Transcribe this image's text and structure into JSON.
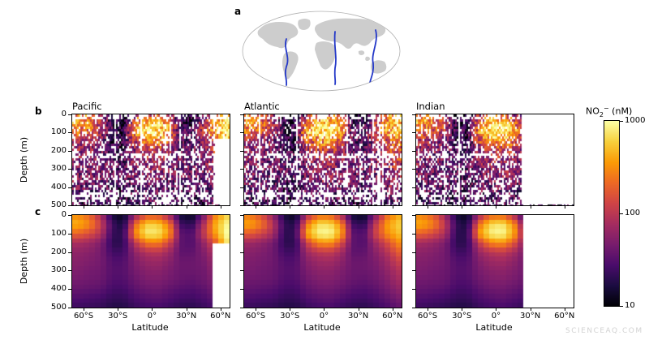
{
  "panels": {
    "a": "a",
    "b": "b",
    "c": "c"
  },
  "watermark": "SCIENCEAQ.COM",
  "map": {
    "transects": [
      "Pacific",
      "Atlantic",
      "Indian"
    ],
    "line_color": "#2438c8",
    "land_color": "#cdcdcd",
    "outline_color": "#b0b0b0"
  },
  "chart_data": {
    "type": "heatmap",
    "description": "Nitrite concentration sections (depth vs latitude) along Pacific, Atlantic and Indian ocean transects; row b scattered observations, row c gridded field; log color scale",
    "x": {
      "label": "Latitude",
      "tick_values": [
        -60,
        -30,
        0,
        30,
        60
      ],
      "tick_labels": [
        "60°S",
        "30°S",
        "0°",
        "30°N",
        "60°N"
      ],
      "range": [
        -70,
        68
      ]
    },
    "y": {
      "label": "Depth (m)",
      "tick_values": [
        0,
        100,
        200,
        300,
        400,
        500
      ],
      "range": [
        0,
        500
      ]
    },
    "colorbar": {
      "label": "NO2- (nM)",
      "formula_main": "NO",
      "formula_sub": "2",
      "formula_sup": "−",
      "unit": " (nM)",
      "scale": "log",
      "ticks": [
        10,
        100,
        1000
      ],
      "colormap": "inferno",
      "colormap_stops": [
        "#000004",
        "#1b0c41",
        "#4a0c6b",
        "#781c6d",
        "#a52c60",
        "#cf4446",
        "#ed6925",
        "#fb9b06",
        "#f7d03c",
        "#fcffa4"
      ]
    },
    "lat_bins": [
      -65,
      -55,
      -45,
      -35,
      -25,
      -15,
      -5,
      5,
      15,
      25,
      35,
      45,
      55,
      65
    ],
    "depth_bins": [
      0,
      50,
      100,
      150,
      200,
      250,
      300,
      350,
      400,
      450,
      500
    ],
    "sections": [
      {
        "name": "Pacific",
        "values_nM": [
          [
            300,
            200,
            80,
            15,
            12,
            60,
            150,
            150,
            70,
            15,
            12,
            40,
            250,
            600
          ],
          [
            450,
            300,
            120,
            25,
            15,
            200,
            600,
            600,
            250,
            25,
            20,
            80,
            400,
            900
          ],
          [
            200,
            150,
            90,
            22,
            20,
            300,
            800,
            800,
            350,
            35,
            30,
            100,
            350,
            1000
          ],
          [
            80,
            70,
            50,
            20,
            20,
            100,
            250,
            280,
            130,
            35,
            30,
            60,
            150,
            700
          ],
          [
            60,
            55,
            45,
            25,
            25,
            60,
            90,
            100,
            70,
            35,
            35,
            50,
            90,
            300
          ],
          [
            55,
            50,
            45,
            30,
            30,
            50,
            65,
            70,
            55,
            40,
            40,
            45,
            70,
            150
          ],
          [
            50,
            45,
            42,
            32,
            32,
            45,
            55,
            58,
            48,
            40,
            40,
            42,
            60,
            100
          ],
          [
            45,
            42,
            40,
            30,
            30,
            40,
            48,
            50,
            44,
            38,
            36,
            40,
            52,
            80
          ],
          [
            38,
            36,
            34,
            26,
            26,
            34,
            40,
            42,
            36,
            32,
            30,
            34,
            44,
            60
          ],
          [
            30,
            28,
            26,
            22,
            22,
            28,
            32,
            34,
            30,
            26,
            25,
            28,
            35,
            45
          ],
          [
            24,
            23,
            22,
            18,
            18,
            23,
            26,
            27,
            24,
            21,
            20,
            23,
            28,
            35
          ]
        ],
        "nodata": [
          {
            "lat0": 55,
            "lat1": 70,
            "depth0": 140,
            "depth1": 500
          }
        ]
      },
      {
        "name": "Atlantic",
        "values_nM": [
          [
            250,
            150,
            60,
            15,
            12,
            80,
            200,
            200,
            80,
            15,
            12,
            50,
            200,
            400
          ],
          [
            400,
            250,
            100,
            22,
            18,
            250,
            700,
            700,
            300,
            25,
            20,
            100,
            350,
            600
          ],
          [
            180,
            130,
            80,
            20,
            22,
            400,
            900,
            1000,
            400,
            35,
            30,
            120,
            300,
            500
          ],
          [
            70,
            60,
            45,
            20,
            20,
            120,
            300,
            350,
            150,
            35,
            30,
            70,
            140,
            300
          ],
          [
            55,
            50,
            42,
            25,
            25,
            70,
            100,
            110,
            75,
            35,
            35,
            55,
            90,
            180
          ],
          [
            50,
            46,
            42,
            30,
            30,
            55,
            70,
            75,
            58,
            40,
            40,
            48,
            70,
            120
          ],
          [
            46,
            43,
            40,
            32,
            32,
            48,
            58,
            60,
            50,
            40,
            40,
            44,
            60,
            90
          ],
          [
            42,
            40,
            38,
            30,
            30,
            42,
            50,
            52,
            45,
            38,
            36,
            40,
            52,
            75
          ],
          [
            36,
            34,
            32,
            26,
            26,
            35,
            42,
            43,
            38,
            32,
            30,
            34,
            44,
            60
          ],
          [
            29,
            27,
            26,
            22,
            22,
            29,
            33,
            35,
            30,
            26,
            25,
            28,
            35,
            46
          ],
          [
            23,
            22,
            21,
            18,
            18,
            23,
            26,
            28,
            24,
            21,
            20,
            23,
            28,
            36
          ]
        ],
        "nodata": []
      },
      {
        "name": "Indian",
        "values_nM": [
          [
            280,
            180,
            70,
            15,
            12,
            70,
            180,
            200,
            90,
            20,
            15,
            15,
            15,
            15
          ],
          [
            420,
            280,
            110,
            22,
            16,
            220,
            650,
            800,
            350,
            40,
            20,
            20,
            20,
            20
          ],
          [
            190,
            140,
            85,
            20,
            20,
            350,
            850,
            1000,
            450,
            60,
            25,
            25,
            25,
            25
          ],
          [
            75,
            65,
            48,
            20,
            20,
            110,
            280,
            350,
            180,
            50,
            30,
            30,
            30,
            30
          ],
          [
            58,
            52,
            44,
            25,
            25,
            65,
            95,
            110,
            80,
            45,
            35,
            35,
            35,
            35
          ],
          [
            52,
            48,
            43,
            30,
            30,
            52,
            68,
            75,
            60,
            42,
            40,
            40,
            40,
            40
          ],
          [
            48,
            44,
            41,
            32,
            32,
            46,
            56,
            60,
            52,
            42,
            40,
            40,
            40,
            40
          ],
          [
            43,
            41,
            39,
            30,
            30,
            41,
            49,
            52,
            46,
            39,
            36,
            36,
            36,
            36
          ],
          [
            37,
            35,
            33,
            26,
            26,
            34,
            41,
            43,
            38,
            33,
            30,
            30,
            30,
            30
          ],
          [
            30,
            28,
            26,
            22,
            22,
            28,
            32,
            35,
            31,
            27,
            25,
            25,
            25,
            25
          ],
          [
            24,
            22,
            21,
            18,
            18,
            23,
            26,
            28,
            25,
            22,
            20,
            20,
            20,
            20
          ]
        ],
        "nodata": [
          {
            "lat0": 22,
            "lat1": 70,
            "depth0": 0,
            "depth1": 500
          }
        ]
      }
    ]
  }
}
